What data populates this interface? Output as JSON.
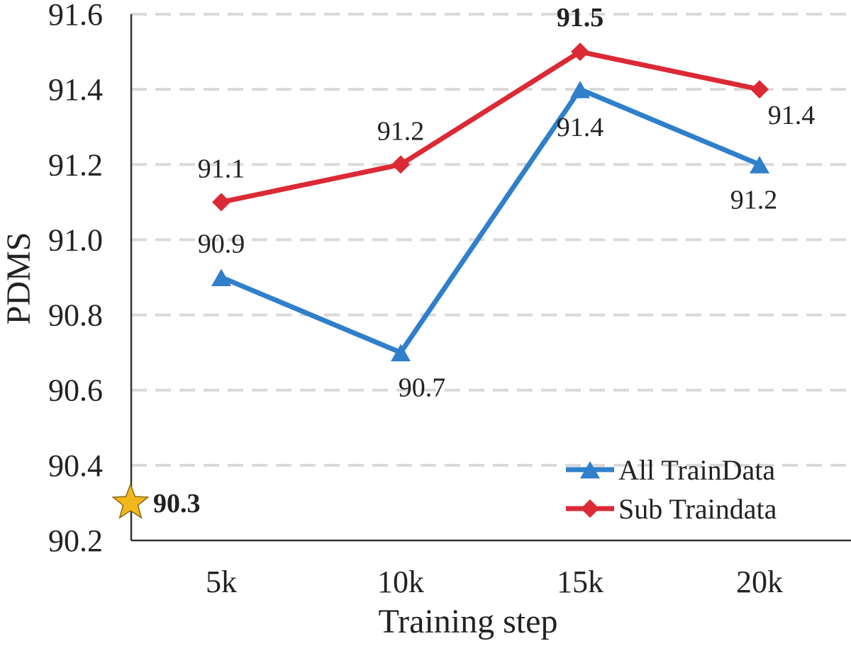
{
  "chart_data": {
    "type": "line",
    "title": "",
    "xlabel": "Training step",
    "ylabel": "PDMS",
    "categories": [
      "5k",
      "10k",
      "15k",
      "20k"
    ],
    "ylim": [
      90.2,
      91.6
    ],
    "yticks": [
      "90.2",
      "90.4",
      "90.6",
      "90.8",
      "91.0",
      "91.2",
      "91.4",
      "91.6"
    ],
    "grid": "horizontal dashed",
    "legend_position": "bottom-right",
    "series": [
      {
        "name": "All TrainData",
        "values": [
          90.9,
          90.7,
          91.4,
          91.2
        ],
        "labels": [
          "90.9",
          "90.7",
          "91.4",
          "91.2"
        ],
        "label_placement": [
          "above",
          "below",
          "below",
          "below"
        ],
        "color": "#2f7fcb",
        "marker": "triangle"
      },
      {
        "name": "Sub Traindata",
        "values": [
          91.1,
          91.2,
          91.5,
          91.4
        ],
        "labels": [
          "91.1",
          "91.2",
          "91.5",
          "91.4"
        ],
        "label_placement": [
          "above",
          "above",
          "above",
          "below"
        ],
        "bold_labels": [
          false,
          false,
          true,
          false
        ],
        "color": "#db2a35",
        "marker": "diamond"
      }
    ],
    "baseline": {
      "value": 90.3,
      "label": "90.3",
      "marker": "star",
      "color": "#f2b71c"
    }
  }
}
